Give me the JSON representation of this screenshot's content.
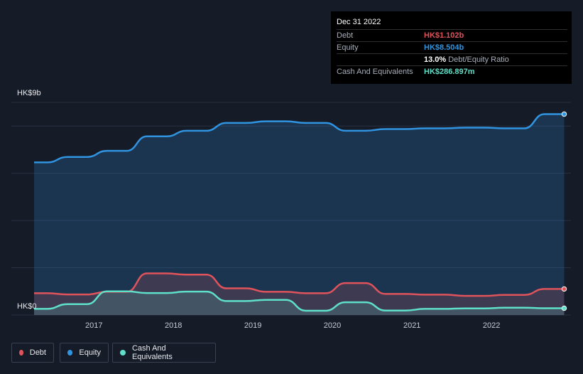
{
  "chart_data": {
    "type": "area",
    "x": [
      "2016-04",
      "2016-06",
      "2016-09",
      "2016-12",
      "2017-03",
      "2017-06",
      "2017-09",
      "2017-12",
      "2018-03",
      "2018-06",
      "2018-09",
      "2018-12",
      "2019-03",
      "2019-06",
      "2019-09",
      "2019-12",
      "2020-03",
      "2020-06",
      "2020-09",
      "2020-12",
      "2021-03",
      "2021-06",
      "2021-09",
      "2021-12",
      "2022-03",
      "2022-06",
      "2022-09",
      "2022-12"
    ],
    "series": [
      {
        "name": "Debt",
        "color": "#e0535b",
        "values": [
          0.92,
          0.92,
          0.87,
          0.87,
          0.98,
          0.98,
          1.76,
          1.76,
          1.71,
          1.71,
          1.13,
          1.13,
          0.98,
          0.98,
          0.92,
          0.92,
          1.35,
          1.35,
          0.89,
          0.89,
          0.86,
          0.86,
          0.81,
          0.81,
          0.85,
          0.85,
          1.102,
          1.102
        ]
      },
      {
        "name": "Equity",
        "color": "#3194e0",
        "values": [
          6.46,
          6.46,
          6.69,
          6.69,
          6.95,
          6.95,
          7.56,
          7.56,
          7.8,
          7.8,
          8.13,
          8.13,
          8.2,
          8.2,
          8.13,
          8.13,
          7.8,
          7.8,
          7.87,
          7.87,
          7.9,
          7.9,
          7.93,
          7.93,
          7.9,
          7.9,
          8.504,
          8.504
        ]
      },
      {
        "name": "Cash And Equivalents",
        "color": "#5fe0c8",
        "values": [
          0.26,
          0.26,
          0.46,
          0.46,
          1.0,
          1.0,
          0.93,
          0.93,
          0.99,
          0.99,
          0.59,
          0.59,
          0.64,
          0.64,
          0.18,
          0.18,
          0.54,
          0.54,
          0.19,
          0.19,
          0.26,
          0.26,
          0.28,
          0.28,
          0.31,
          0.31,
          0.287,
          0.287
        ]
      }
    ],
    "ylim": [
      0,
      9
    ],
    "y_tick_labels": [
      "HK$9b",
      "HK$0"
    ],
    "x_tick_labels": [
      "2017",
      "2018",
      "2019",
      "2020",
      "2021",
      "2022"
    ],
    "grid": true,
    "legend_position": "bottom-left"
  },
  "tooltip": {
    "date": "Dec 31 2022",
    "rows": [
      {
        "label": "Debt",
        "value": "HK$1.102b",
        "color": "#e0535b"
      },
      {
        "label": "Equity",
        "value": "HK$8.504b",
        "color": "#3194e0"
      },
      {
        "label": "",
        "value": "13.0%",
        "suffix": "Debt/Equity Ratio",
        "color": "#ffffff"
      },
      {
        "label": "Cash And Equivalents",
        "value": "HK$286.897m",
        "color": "#5fe0c8"
      }
    ]
  },
  "legend": {
    "items": [
      {
        "label": "Debt",
        "color": "#e0535b"
      },
      {
        "label": "Equity",
        "color": "#3194e0"
      },
      {
        "label": "Cash And Equivalents",
        "color": "#5fe0c8"
      }
    ]
  }
}
